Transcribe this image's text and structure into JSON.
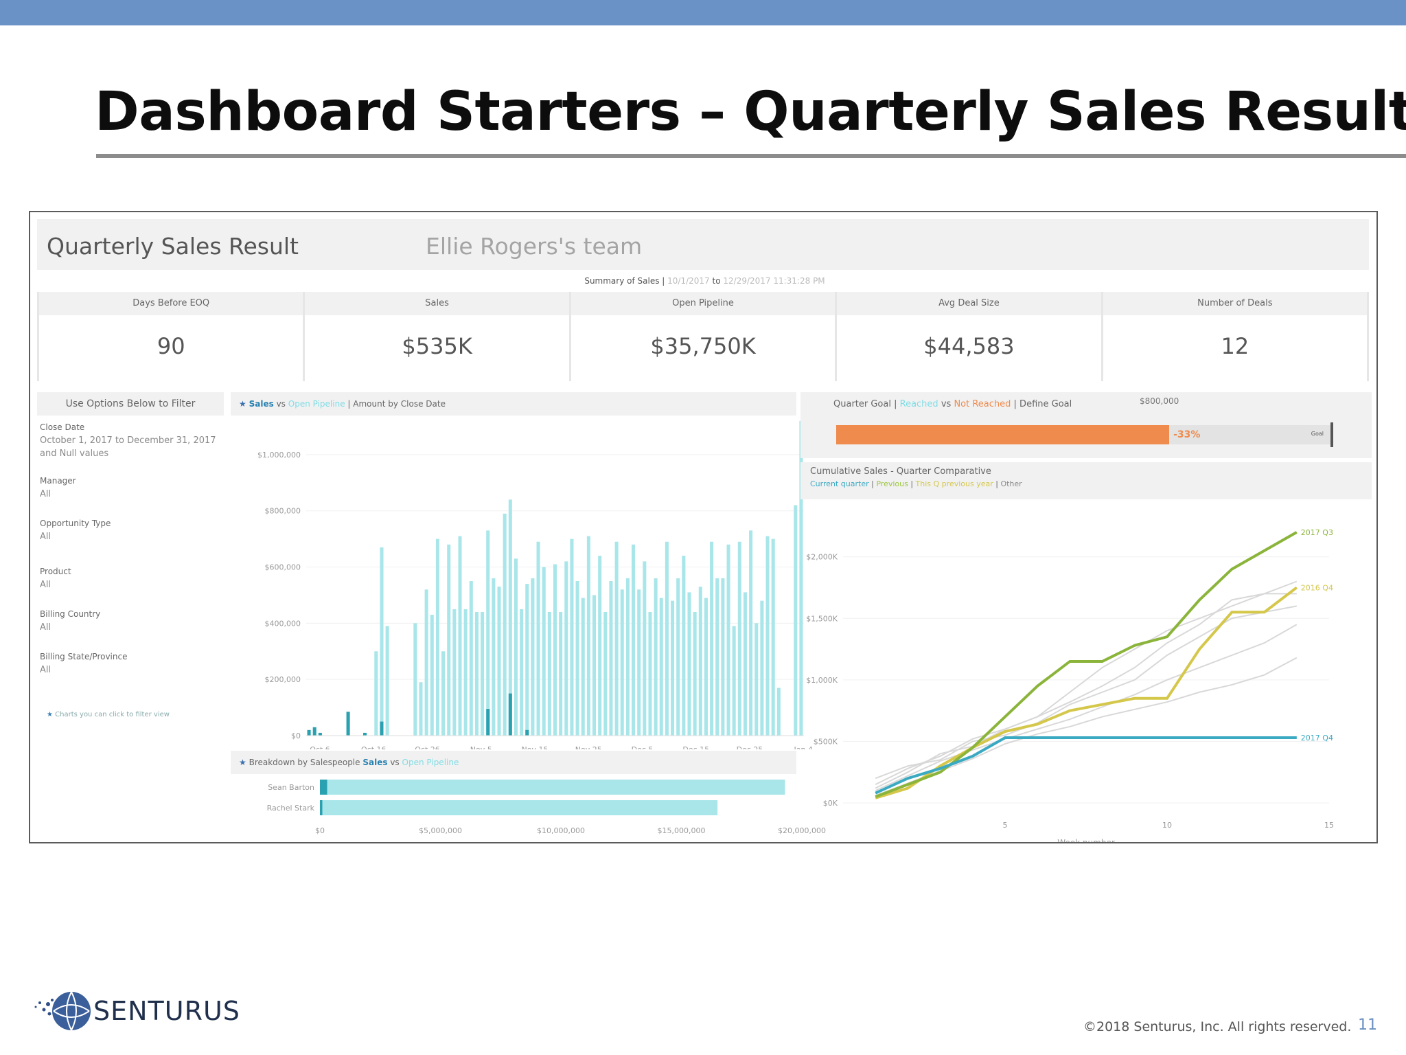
{
  "slide": {
    "title": "Dashboard Starters – Quarterly Sales Result",
    "copyright": "©2018 Senturus, Inc. All rights reserved.",
    "page_number": "11",
    "brand": "SENTURUS",
    "colors": {
      "top_band": "#6a92c6",
      "title_rule": "#8c8c8c"
    }
  },
  "dashboard": {
    "title": "Quarterly Sales Result",
    "team": "Ellie Rogers's team",
    "summary": {
      "label": "Summary of Sales |",
      "from": "10/1/2017",
      "to_word": "to",
      "to": "12/29/2017 11:31:28 PM"
    },
    "kpis": [
      {
        "label": "Days Before EOQ",
        "value": "90"
      },
      {
        "label": "Sales",
        "value": "$535K"
      },
      {
        "label": "Open Pipeline",
        "value": "$35,750K"
      },
      {
        "label": "Avg Deal Size",
        "value": "$44,583"
      },
      {
        "label": "Number of Deals",
        "value": "12"
      }
    ],
    "filters": {
      "header": "Use Options Below to Filter",
      "items": [
        {
          "label": "Close Date",
          "value": "October 1, 2017 to December 31, 2017 and Null values"
        },
        {
          "label": "Manager",
          "value": "All"
        },
        {
          "label": "Opportunity Type",
          "value": "All"
        },
        {
          "label": "Product",
          "value": "All"
        },
        {
          "label": "Billing Country",
          "value": "All"
        },
        {
          "label": "Billing State/Province",
          "value": "All"
        }
      ],
      "note": "Charts you can click to filter view"
    },
    "sales_chart": {
      "title_sales": "Sales",
      "title_vs": "vs",
      "title_pipeline": "Open Pipeline",
      "title_rest": "| Amount by Close Date"
    },
    "breakdown": {
      "title": "Breakdown by Salespeople",
      "title_sales": "Sales",
      "title_vs": "vs",
      "title_pipeline": "Open Pipeline"
    },
    "goal": {
      "title_pre": "Quarter Goal |",
      "reached": "Reached",
      "vs": "vs",
      "not_reached": "Not Reached",
      "title_post": "| Define Goal",
      "goal_value": "$800,000",
      "bar_label": "-33%",
      "goal_tag": "Goal",
      "fraction_reached": 0.67,
      "colors": {
        "reached": "#ef8b4c",
        "remaining": "#e3e3e3"
      }
    },
    "cumulative": {
      "title": "Cumulative Sales - Quarter Comparative",
      "legend": [
        {
          "label": "Current quarter",
          "color": "#3aa9c2"
        },
        {
          "label": "Previous",
          "color": "#9cc63c"
        },
        {
          "label": "This Q previous year",
          "color": "#d4c74a"
        },
        {
          "label": "Other",
          "color": "#8a8a8a"
        }
      ],
      "xlabel": "Week number"
    }
  },
  "chart_data": [
    {
      "type": "bar",
      "title": "Sales vs Open Pipeline | Amount by Close Date",
      "xlabel": "",
      "ylabel": "",
      "ylim": [
        0,
        1100000
      ],
      "yticks": [
        0,
        200000,
        400000,
        600000,
        800000,
        1000000
      ],
      "ytick_labels": [
        "$0",
        "$200,000",
        "$400,000",
        "$600,000",
        "$800,000",
        "$1,000,000"
      ],
      "xtick_labels": [
        "Oct 6",
        "Oct 16",
        "Oct 26",
        "Nov 5",
        "Nov 15",
        "Nov 25",
        "Dec 5",
        "Dec 15",
        "Dec 25",
        "Jan 4"
      ],
      "colors": {
        "sales": "#2aa1b0",
        "pipeline": "#a9e6ea"
      },
      "series": [
        {
          "name": "Sales",
          "values": [
            20000,
            30000,
            10000,
            0,
            0,
            0,
            0,
            85000,
            0,
            0,
            10000,
            0,
            0,
            50000,
            0,
            0,
            0,
            0,
            0,
            0,
            0,
            0,
            0,
            0,
            0,
            0,
            0,
            0,
            0,
            0,
            0,
            0,
            95000,
            0,
            0,
            0,
            150000,
            0,
            0,
            20000,
            0,
            0,
            0,
            0,
            0,
            0,
            0,
            0,
            0,
            0,
            0,
            0,
            0,
            0,
            0,
            0,
            0,
            0,
            0,
            0,
            0,
            0,
            0,
            0,
            0,
            0,
            0,
            0,
            0,
            0,
            0,
            0,
            0,
            0,
            0,
            0,
            0,
            0,
            0,
            0,
            0,
            0,
            0,
            0,
            0,
            0,
            0,
            0,
            0
          ]
        },
        {
          "name": "Open Pipeline",
          "values": [
            0,
            0,
            0,
            0,
            0,
            0,
            0,
            0,
            0,
            0,
            0,
            0,
            300000,
            670000,
            390000,
            0,
            0,
            0,
            0,
            400000,
            190000,
            520000,
            430000,
            700000,
            300000,
            680000,
            450000,
            710000,
            450000,
            550000,
            440000,
            440000,
            730000,
            560000,
            530000,
            790000,
            840000,
            630000,
            450000,
            540000,
            560000,
            690000,
            600000,
            440000,
            610000,
            440000,
            620000,
            700000,
            550000,
            490000,
            710000,
            500000,
            640000,
            440000,
            550000,
            690000,
            520000,
            560000,
            680000,
            520000,
            620000,
            440000,
            560000,
            490000,
            690000,
            480000,
            560000,
            640000,
            510000,
            440000,
            530000,
            490000,
            690000,
            560000,
            560000,
            680000,
            390000,
            690000,
            510000,
            730000,
            400000,
            480000,
            710000,
            700000,
            170000,
            0,
            0,
            820000,
            1120000
          ]
        }
      ]
    },
    {
      "type": "bar",
      "title": "Breakdown by Salespeople Sales vs Open Pipeline",
      "orientation": "horizontal",
      "categories": [
        "Sean Barton",
        "Rachel Stark"
      ],
      "xlim": [
        0,
        20000000
      ],
      "xtick_labels": [
        "$0",
        "$5,000,000",
        "$10,000,000",
        "$15,000,000",
        "$20,000,000"
      ],
      "series": [
        {
          "name": "Sales",
          "values": [
            300000,
            100000
          ]
        },
        {
          "name": "Open Pipeline",
          "values": [
            19300000,
            16500000
          ]
        }
      ]
    },
    {
      "type": "line",
      "title": "Cumulative Sales - Quarter Comparative",
      "xlabel": "Week number",
      "xlim": [
        0,
        15
      ],
      "ylim": [
        0,
        2400000
      ],
      "yticks": [
        0,
        500000,
        1000000,
        1500000,
        2000000
      ],
      "ytick_labels": [
        "$0K",
        "$500K",
        "$1,000K",
        "$1,500K",
        "$2,000K"
      ],
      "xtick_labels": [
        "5",
        "10",
        "15"
      ],
      "x": [
        1,
        2,
        3,
        4,
        5,
        6,
        7,
        8,
        9,
        10,
        11,
        12,
        13,
        14
      ],
      "series": [
        {
          "name": "2017 Q3",
          "color": "#8bb43a",
          "values": [
            50000,
            150000,
            250000,
            450000,
            700000,
            950000,
            1150000,
            1150000,
            1280000,
            1350000,
            1650000,
            1900000,
            2050000,
            2200000
          ]
        },
        {
          "name": "2016 Q4",
          "color": "#d4c74a",
          "values": [
            40000,
            120000,
            300000,
            450000,
            580000,
            640000,
            750000,
            800000,
            850000,
            850000,
            1250000,
            1550000,
            1550000,
            1750000
          ]
        },
        {
          "name": "2017 Q4",
          "color": "#3aa9c2",
          "values": [
            80000,
            200000,
            280000,
            380000,
            530000,
            530000,
            530000,
            530000,
            530000,
            530000,
            530000,
            530000,
            530000,
            530000
          ]
        },
        {
          "name": "",
          "color": "#d8d8d8",
          "values": [
            120000,
            250000,
            400000,
            460000,
            600000,
            700000,
            900000,
            1100000,
            1250000,
            1400000,
            1500000,
            1600000,
            1700000,
            1800000
          ]
        },
        {
          "name": "",
          "color": "#d8d8d8",
          "values": [
            200000,
            300000,
            350000,
            500000,
            550000,
            650000,
            800000,
            900000,
            1000000,
            1200000,
            1350000,
            1500000,
            1550000,
            1600000
          ]
        },
        {
          "name": "",
          "color": "#d8d8d8",
          "values": [
            100000,
            220000,
            340000,
            430000,
            520000,
            600000,
            680000,
            780000,
            880000,
            1000000,
            1100000,
            1200000,
            1300000,
            1450000
          ]
        },
        {
          "name": "",
          "color": "#d8d8d8",
          "values": [
            60000,
            160000,
            260000,
            360000,
            480000,
            560000,
            620000,
            700000,
            760000,
            820000,
            900000,
            960000,
            1040000,
            1180000
          ]
        },
        {
          "name": "",
          "color": "#d8d8d8",
          "values": [
            150000,
            280000,
            380000,
            520000,
            600000,
            700000,
            820000,
            950000,
            1100000,
            1300000,
            1450000,
            1650000,
            1700000,
            1700000
          ]
        }
      ],
      "end_labels": [
        "2017 Q3",
        "2016 Q4",
        "2017 Q4"
      ]
    }
  ]
}
